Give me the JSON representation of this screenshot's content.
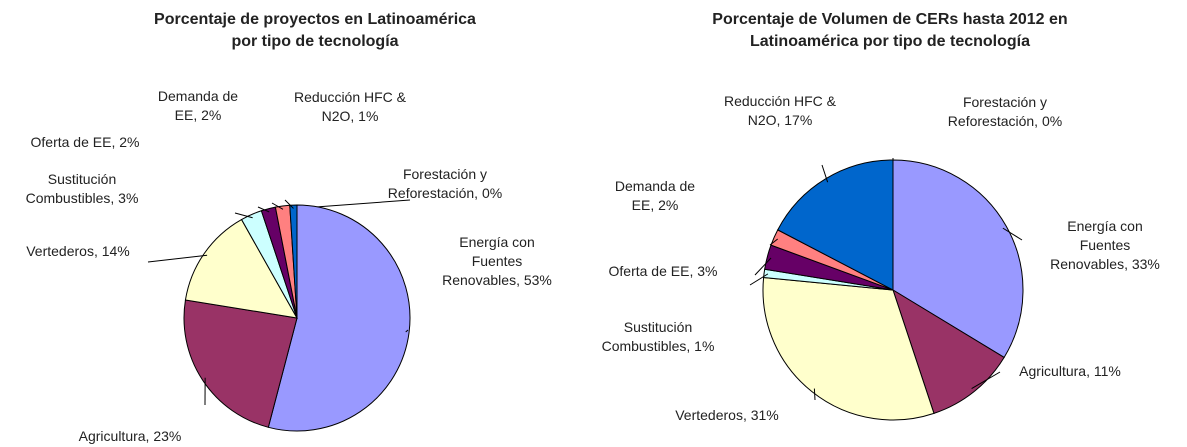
{
  "chart_data": [
    {
      "type": "pie",
      "title": "Porcentaje de proyectos en Latinoamérica\npor tipo de tecnología",
      "labels": [
        "Forestación y\nReforestación, 0%",
        "Energía con\nFuentes\nRenovables, 53%",
        "Agricultura, 23%",
        "Vertederos, 14%",
        "Sustitución\nCombustibles, 3%",
        "Oferta de EE, 2%",
        "Demanda de\nEE, 2%",
        "Reducción HFC &\nN2O, 1%"
      ],
      "values": [
        0,
        53,
        23,
        14,
        3,
        2,
        2,
        1
      ],
      "colors": [
        "#ffffff",
        "#9999ff",
        "#993366",
        "#ffffcc",
        "#ccffff",
        "#660066",
        "#ff8080",
        "#0066cc"
      ]
    },
    {
      "type": "pie",
      "title": "Porcentaje de Volumen de CERs hasta 2012  en\nLatinoamérica por tipo de tecnología",
      "labels": [
        "Forestación y\nReforestación, 0%",
        "Energía con\nFuentes\nRenovables, 33%",
        "Agricultura, 11%",
        "Vertederos, 31%",
        "Sustitución\nCombustibles, 1%",
        "Oferta de EE, 3%",
        "Demanda de\nEE, 2%",
        "Reducción HFC &\nN2O, 17%"
      ],
      "values": [
        0,
        33,
        11,
        31,
        1,
        3,
        2,
        17
      ],
      "colors": [
        "#ffffff",
        "#9999ff",
        "#993366",
        "#ffffcc",
        "#ccffff",
        "#660066",
        "#ff8080",
        "#0066cc"
      ]
    }
  ]
}
